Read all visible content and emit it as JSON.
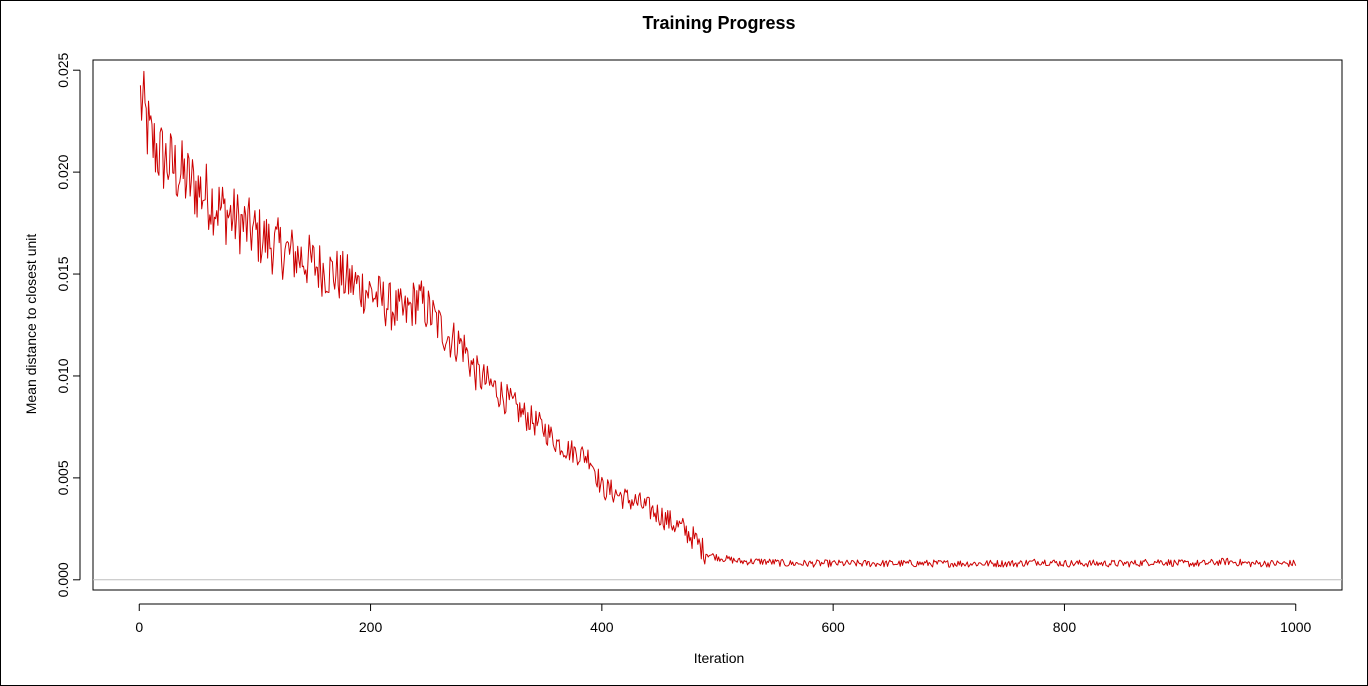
{
  "chart_data": {
    "type": "line",
    "title": "Training Progress",
    "xlabel": "Iteration",
    "ylabel": "Mean distance to closest unit",
    "xlim": [
      -40,
      1040
    ],
    "ylim": [
      -0.0005,
      0.0255
    ],
    "x_ticks": [
      0,
      200,
      400,
      600,
      800,
      1000
    ],
    "x_tick_labels": [
      "0",
      "200",
      "400",
      "600",
      "800",
      "1000"
    ],
    "y_ticks": [
      0.0,
      0.005,
      0.01,
      0.015,
      0.02,
      0.025
    ],
    "y_tick_labels": [
      "0.000",
      "0.005",
      "0.010",
      "0.015",
      "0.020",
      "0.025"
    ],
    "reference_line": {
      "y": 0.0,
      "color": "#bebebe"
    },
    "grid": false,
    "legend": "none",
    "series": [
      {
        "color": "#cc0000",
        "points_every": 10,
        "x": [
          1,
          10,
          20,
          30,
          40,
          50,
          60,
          70,
          80,
          90,
          100,
          110,
          120,
          130,
          140,
          150,
          160,
          170,
          180,
          190,
          200,
          210,
          220,
          230,
          240,
          250,
          260,
          270,
          280,
          290,
          300,
          310,
          320,
          330,
          340,
          350,
          360,
          370,
          380,
          390,
          400,
          410,
          420,
          430,
          440,
          450,
          460,
          470,
          480,
          490,
          500,
          520,
          540,
          560,
          580,
          600,
          620,
          640,
          660,
          680,
          700,
          720,
          740,
          760,
          780,
          800,
          820,
          840,
          860,
          880,
          900,
          920,
          940,
          960,
          980,
          1000
        ],
        "y": [
          0.0236,
          0.0215,
          0.0207,
          0.0202,
          0.0197,
          0.0192,
          0.0188,
          0.0182,
          0.0178,
          0.0174,
          0.017,
          0.0166,
          0.0163,
          0.016,
          0.0158,
          0.0155,
          0.0152,
          0.015,
          0.0147,
          0.0144,
          0.0141,
          0.0137,
          0.0133,
          0.013,
          0.0138,
          0.0132,
          0.0124,
          0.0118,
          0.0115,
          0.0102,
          0.0097,
          0.0093,
          0.0087,
          0.0082,
          0.0078,
          0.0074,
          0.0068,
          0.0064,
          0.0062,
          0.006,
          0.0045,
          0.0043,
          0.004,
          0.0038,
          0.0035,
          0.0032,
          0.0028,
          0.0025,
          0.002,
          0.0013,
          0.0011,
          0.0009,
          0.0009,
          0.0008,
          0.0008,
          0.0008,
          0.0008,
          0.0008,
          0.0008,
          0.0008,
          0.0008,
          0.0008,
          0.0008,
          0.0008,
          0.0009,
          0.0008,
          0.0008,
          0.0008,
          0.0008,
          0.0009,
          0.0008,
          0.0008,
          0.0009,
          0.0008,
          0.0008,
          0.0008
        ]
      }
    ]
  }
}
